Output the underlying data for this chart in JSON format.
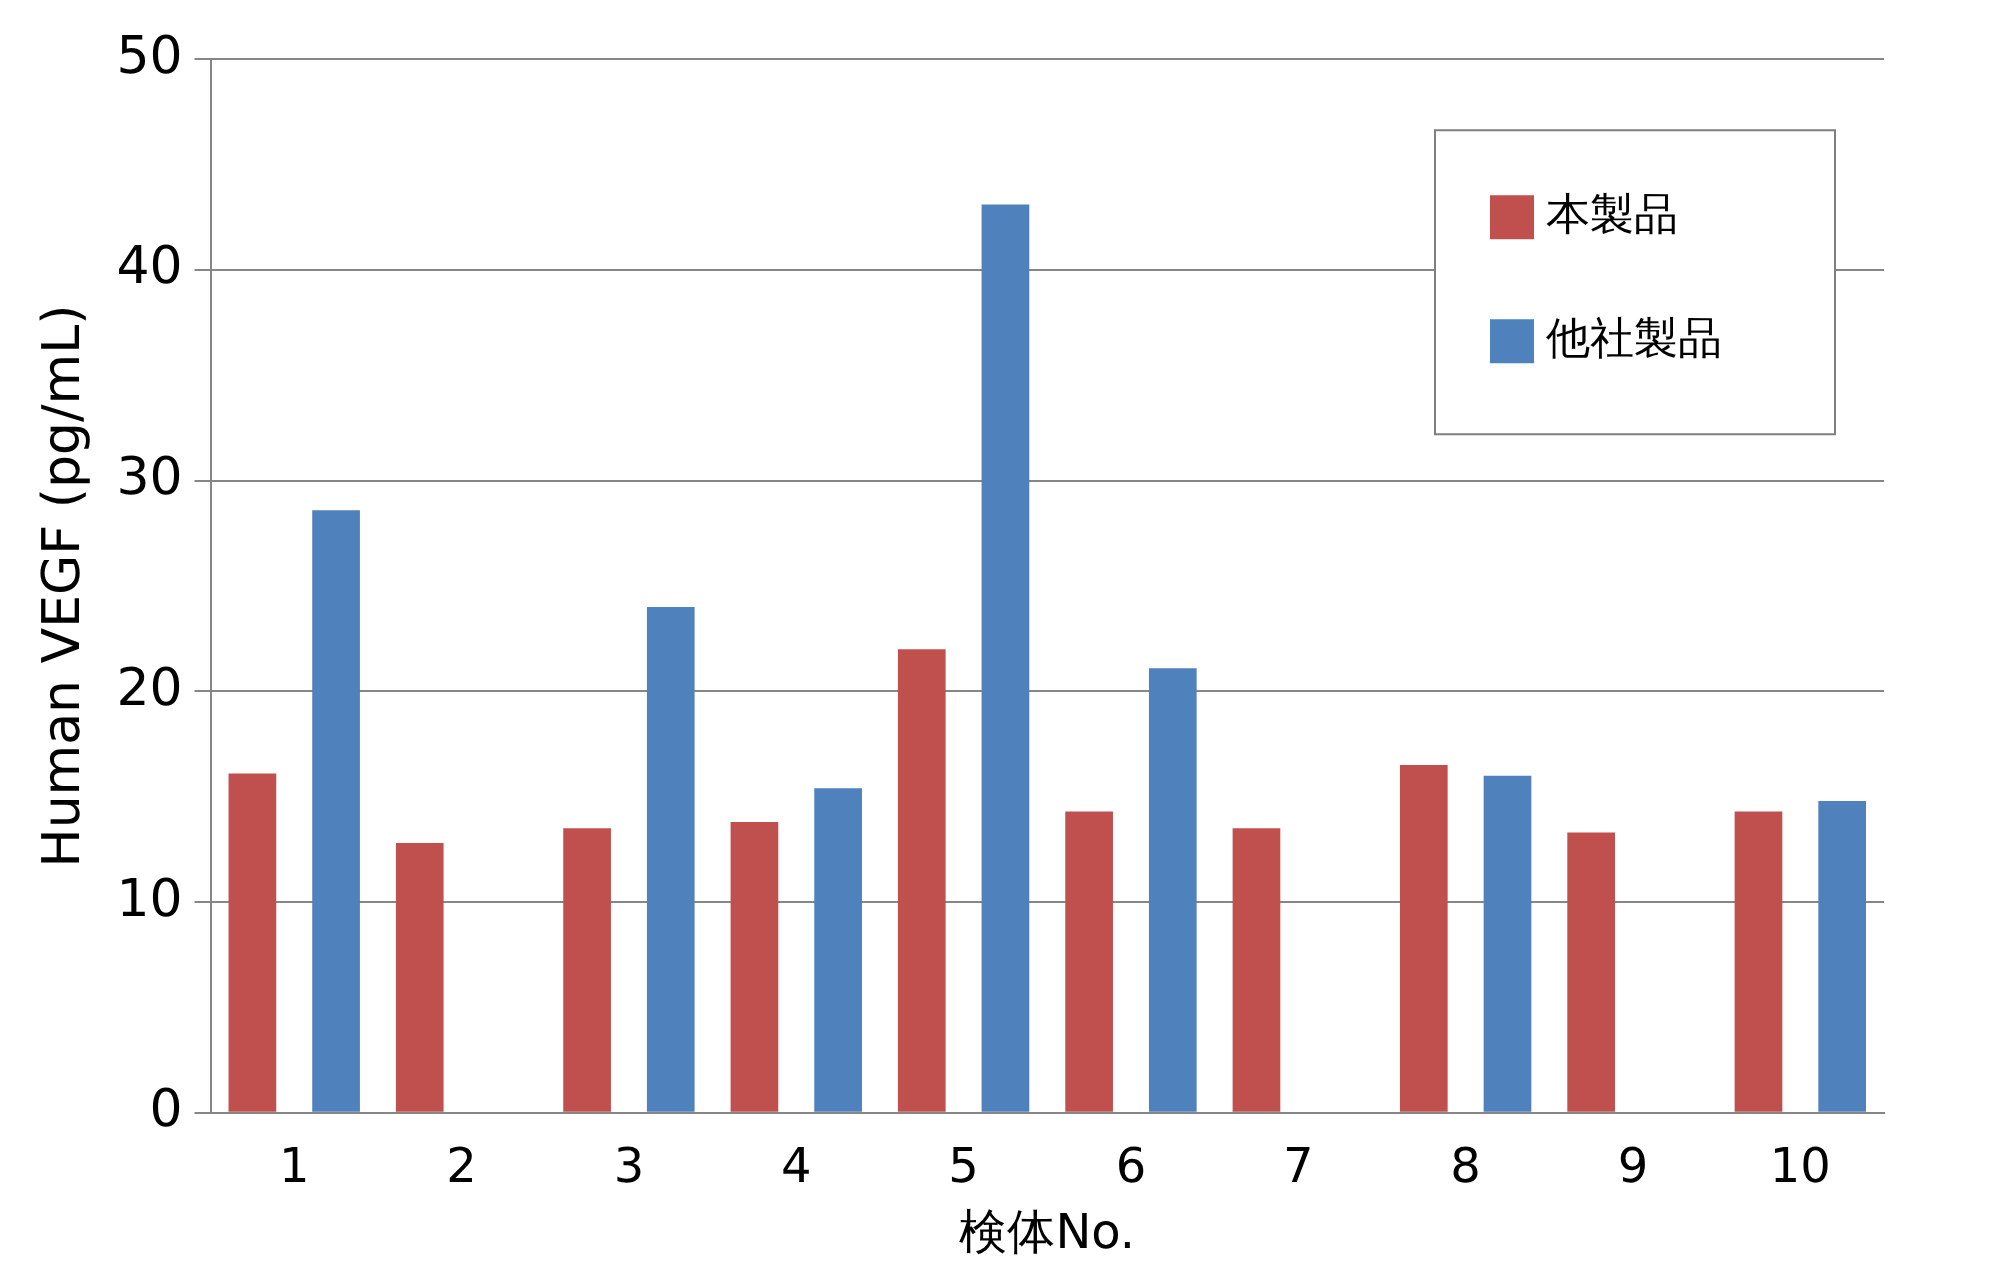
{
  "chart_data": {
    "type": "bar",
    "xlabel": "検体No.",
    "ylabel": "Human VEGF (pg/mL)",
    "categories": [
      "1",
      "2",
      "3",
      "4",
      "5",
      "6",
      "7",
      "8",
      "9",
      "10"
    ],
    "series": [
      {
        "name": "本製品",
        "color": "#c0504d",
        "values": [
          16.1,
          12.8,
          13.5,
          13.8,
          22.0,
          14.3,
          13.5,
          16.5,
          13.3,
          14.3
        ]
      },
      {
        "name": "他社製品",
        "color": "#4f81bd",
        "values": [
          28.6,
          null,
          24.0,
          15.4,
          43.1,
          21.1,
          null,
          16.0,
          null,
          14.8
        ]
      }
    ],
    "ylim": [
      0,
      50
    ],
    "yticks": [
      0,
      10,
      20,
      30,
      40,
      50
    ],
    "grid": "y",
    "legend": "top right"
  }
}
